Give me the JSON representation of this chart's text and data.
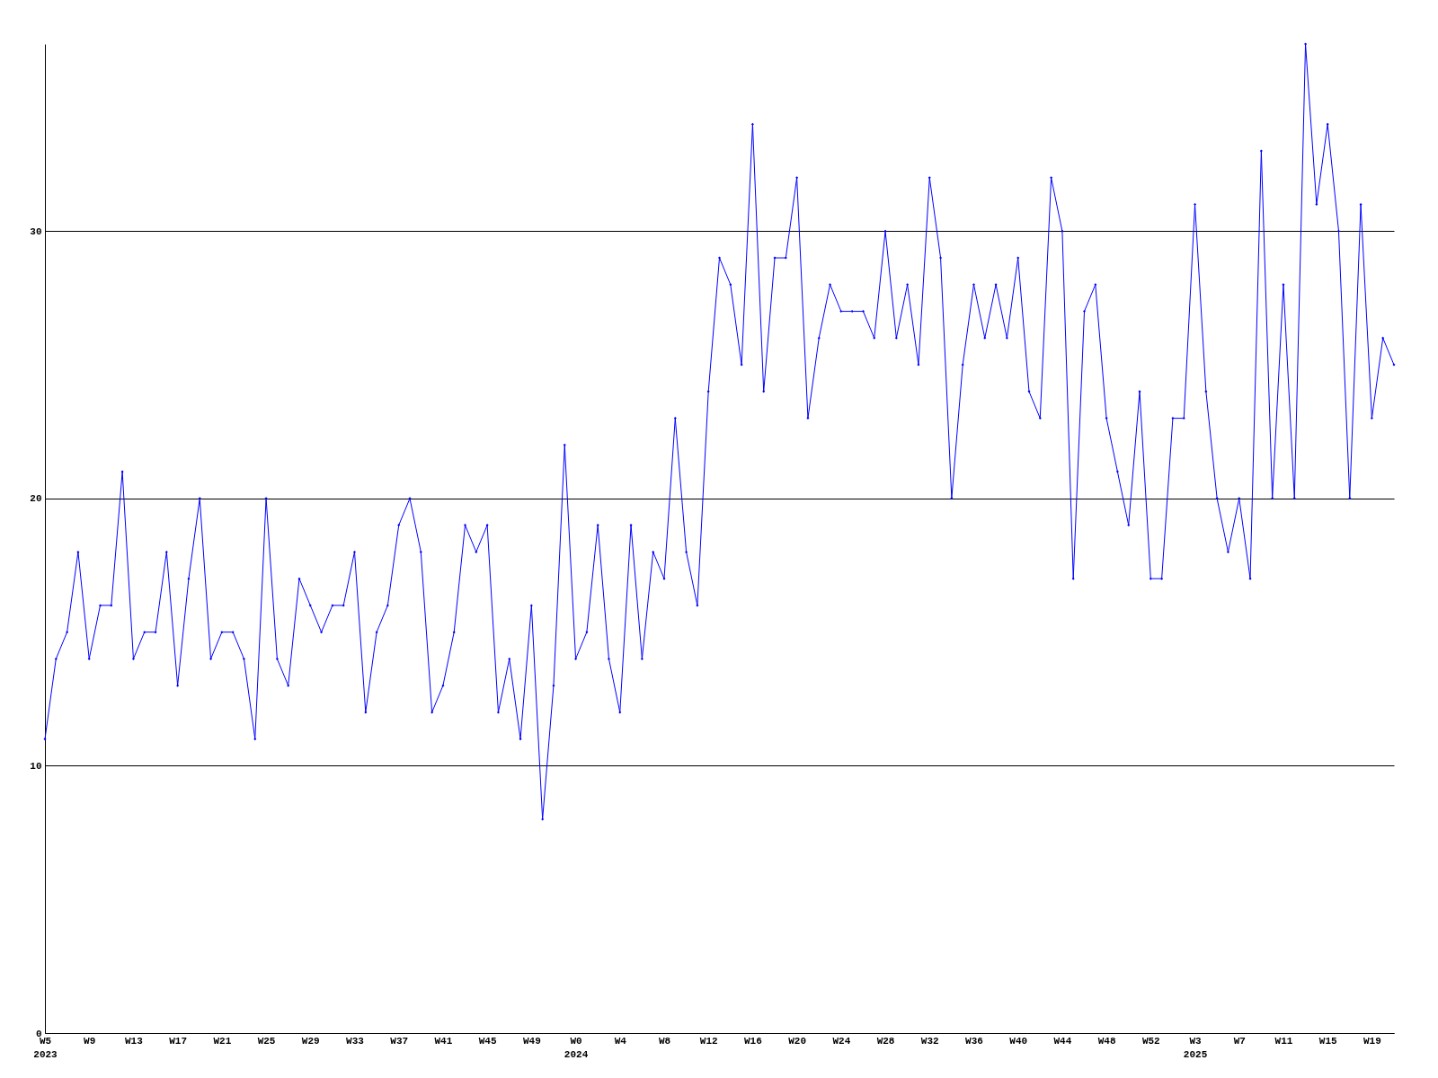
{
  "chart_data": {
    "type": "line",
    "categories": [
      "W5\n2023",
      null,
      null,
      null,
      "W9",
      null,
      null,
      null,
      "W13",
      null,
      null,
      null,
      "W17",
      null,
      null,
      null,
      "W21",
      null,
      null,
      null,
      "W25",
      null,
      null,
      null,
      "W29",
      null,
      null,
      null,
      "W33",
      null,
      null,
      null,
      "W37",
      null,
      null,
      null,
      "W41",
      null,
      null,
      null,
      "W45",
      null,
      null,
      null,
      "W49",
      null,
      null,
      null,
      "W0\n2024",
      null,
      null,
      null,
      "W4",
      null,
      null,
      null,
      "W8",
      null,
      null,
      null,
      "W12",
      null,
      null,
      null,
      "W16",
      null,
      null,
      null,
      "W20",
      null,
      null,
      null,
      "W24",
      null,
      null,
      null,
      "W28",
      null,
      null,
      null,
      "W32",
      null,
      null,
      null,
      "W36",
      null,
      null,
      null,
      "W40",
      null,
      null,
      null,
      "W44",
      null,
      null,
      null,
      "W48",
      null,
      null,
      null,
      "W52",
      null,
      null,
      null,
      "W3\n2025",
      null,
      null,
      null,
      "W7",
      null,
      null,
      null,
      "W11",
      null,
      null,
      null,
      "W15",
      null,
      null,
      null,
      "W19",
      null,
      null
    ],
    "series": [
      {
        "color": "#0000ff",
        "values": [
          11,
          14,
          15,
          18,
          14,
          16,
          16,
          21,
          14,
          15,
          15,
          18,
          13,
          17,
          20,
          14,
          15,
          15,
          14,
          11,
          20,
          14,
          13,
          17,
          16,
          15,
          16,
          16,
          18,
          12,
          15,
          16,
          19,
          20,
          18,
          12,
          13,
          15,
          19,
          18,
          19,
          12,
          14,
          11,
          16,
          8,
          13,
          22,
          14,
          15,
          19,
          14,
          12,
          19,
          14,
          18,
          17,
          23,
          18,
          16,
          24,
          29,
          28,
          25,
          34,
          24,
          29,
          29,
          32,
          23,
          26,
          28,
          27,
          27,
          27,
          26,
          30,
          26,
          28,
          25,
          32,
          29,
          20,
          25,
          28,
          26,
          28,
          26,
          29,
          24,
          23,
          32,
          30,
          17,
          27,
          28,
          23,
          21,
          19,
          24,
          17,
          17,
          23,
          23,
          31,
          24,
          20,
          18,
          20,
          17,
          33,
          20,
          28,
          20,
          37,
          31,
          34,
          30,
          20,
          31,
          23,
          26,
          25
        ]
      }
    ],
    "ylim": [
      0,
      37
    ],
    "yticks": [
      0,
      10,
      20,
      30
    ],
    "grid": "y",
    "marker": "diamond",
    "line_style": "solid",
    "legend": false
  }
}
